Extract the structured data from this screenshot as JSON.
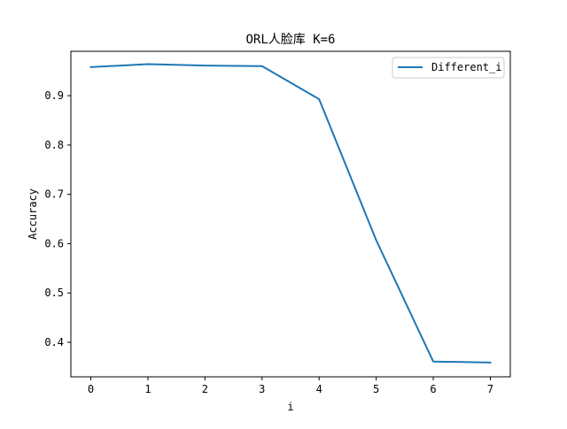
{
  "chart_data": {
    "type": "line",
    "title": "ORL人脸库 K=6",
    "xlabel": "i",
    "ylabel": "Accuracy",
    "x": [
      0,
      1,
      2,
      3,
      4,
      5,
      6,
      7
    ],
    "series": [
      {
        "name": "Different_i",
        "color": "#1f77b4",
        "values": [
          0.958,
          0.964,
          0.961,
          0.96,
          0.893,
          0.607,
          0.361,
          0.359
        ]
      }
    ],
    "xlim": [
      -0.35,
      7.35
    ],
    "ylim": [
      0.33,
      0.99
    ],
    "xticks": [
      "0",
      "1",
      "2",
      "3",
      "4",
      "5",
      "6",
      "7"
    ],
    "yticks": [
      "0.4",
      "0.5",
      "0.6",
      "0.7",
      "0.8",
      "0.9"
    ],
    "ytick_values": [
      0.4,
      0.5,
      0.6,
      0.7,
      0.8,
      0.9
    ],
    "legend_position": "top-right",
    "grid": false
  }
}
